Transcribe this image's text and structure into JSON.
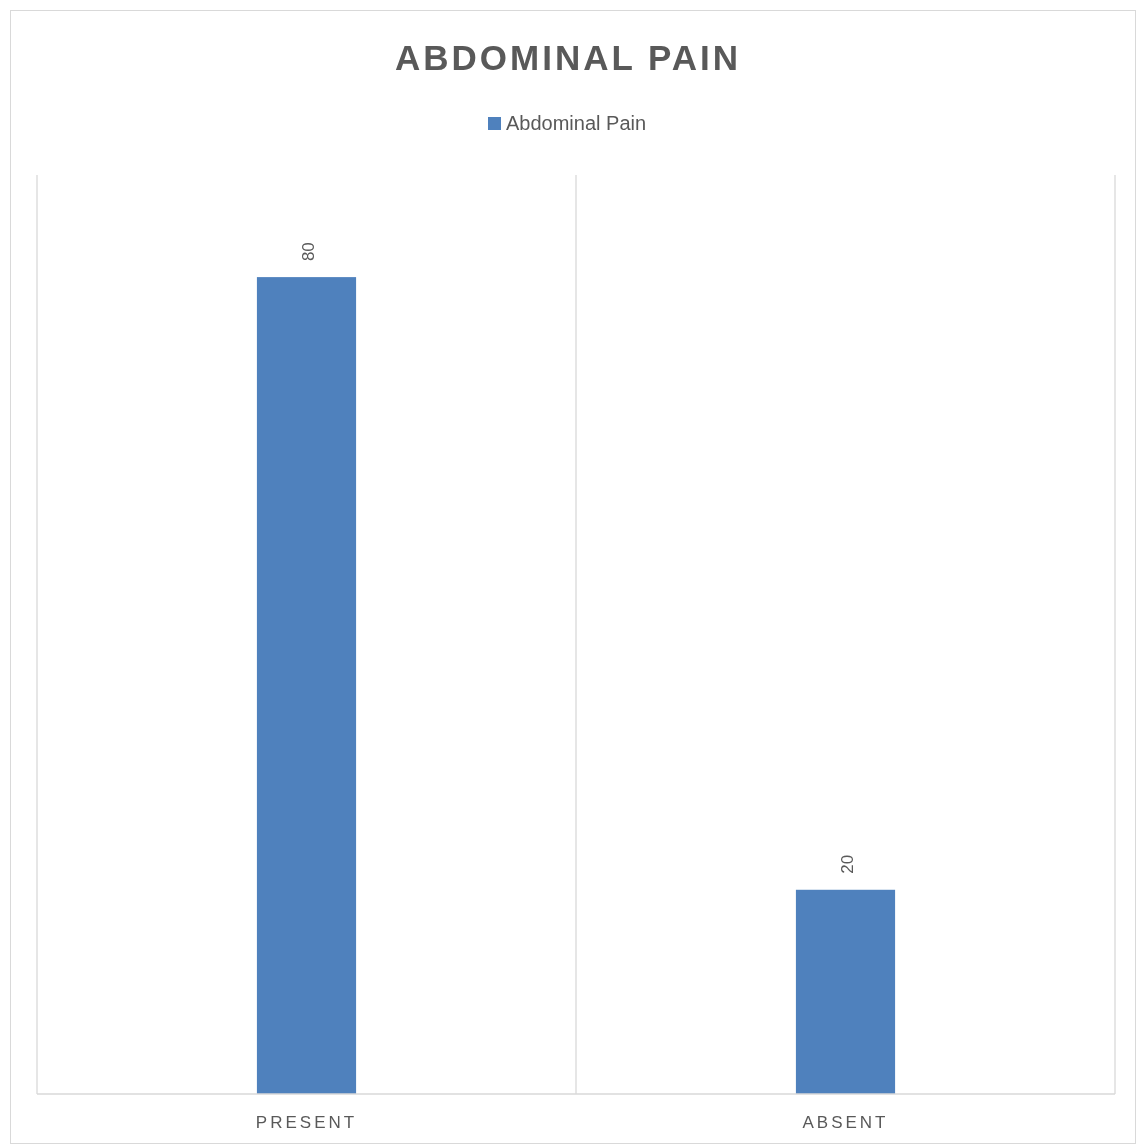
{
  "chart_data": {
    "type": "bar",
    "title": "ABDOMINAL PAIN",
    "categories": [
      "PRESENT",
      "ABSENT"
    ],
    "series": [
      {
        "name": "Abdominal Pain",
        "color": "#4f81bd",
        "values": [
          80,
          20
        ]
      }
    ],
    "ylim": [
      0,
      90
    ],
    "data_labels": true,
    "grid": "x",
    "legend": "top",
    "tick_labels": "x"
  }
}
